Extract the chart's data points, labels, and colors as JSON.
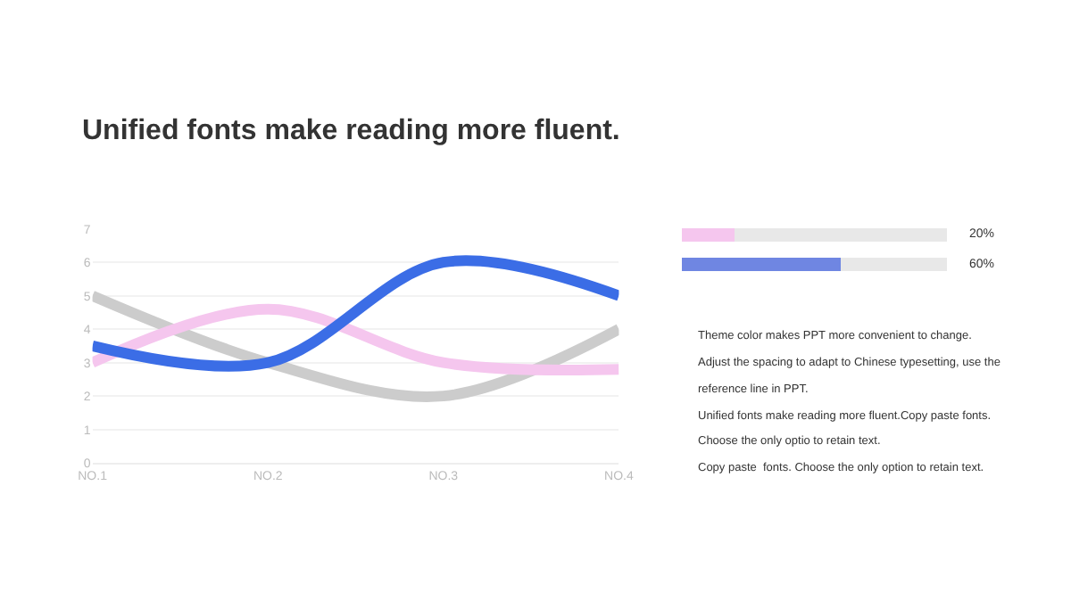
{
  "chart_data": [
    {
      "type": "line",
      "title": "Unified fonts make reading more fluent.",
      "categories": [
        "NO.1",
        "NO.2",
        "NO.3",
        "NO.4"
      ],
      "series": [
        {
          "color": "#cccccc",
          "values": [
            5,
            3,
            2,
            4
          ]
        },
        {
          "color": "#f5c6ee",
          "values": [
            3,
            4.6,
            3,
            2.8
          ]
        },
        {
          "color": "#3b6de6",
          "values": [
            3.5,
            3,
            6,
            5
          ]
        }
      ],
      "ylim": [
        0,
        7
      ],
      "yticks": [
        0,
        1,
        2,
        3,
        4,
        5,
        6,
        7
      ],
      "grid": "y",
      "marker": "none",
      "line_style": "solid"
    },
    {
      "type": "bar",
      "orientation": "horizontal",
      "stacked": true,
      "categories": [
        null,
        null
      ],
      "xlim": [
        0,
        100
      ],
      "tick_labels": false,
      "series": [
        {
          "colors": [
            "#f5c6ee",
            "#6f86e2"
          ],
          "values": [
            20,
            60
          ],
          "value_labels": [
            "20%",
            "60%"
          ]
        },
        {
          "color": "#e8e8e8",
          "values": [
            80,
            40
          ]
        }
      ]
    },
    {
      "type": "other",
      "annotations": [
        "Theme color makes PPT more convenient to change.",
        "Adjust the spacing to adapt to Chinese typesetting, use the",
        "reference line in PPT.",
        "Unified fonts make reading more fluent.Copy paste fonts.",
        "Choose the only optio to retain text.",
        "Copy paste  fonts. Choose the only option to retain text."
      ]
    }
  ]
}
